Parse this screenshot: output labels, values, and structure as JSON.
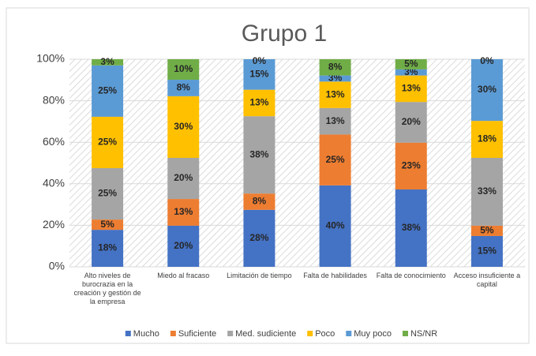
{
  "chart_data": {
    "type": "stacked_bar",
    "title": "Grupo 1",
    "categories": [
      "Alto niveles de burocrazia en la creación y gestión de la empresa",
      "Miedo al fracaso",
      "Limitación de tiempo",
      "Falta de habilidades",
      "Falta de conocimiento",
      "Acceso insuficiente a capital"
    ],
    "series": [
      {
        "name": "Mucho",
        "color": "#4472c4",
        "values": [
          18,
          20,
          28,
          40,
          38,
          15
        ],
        "value_labels": [
          "18%",
          "20%",
          "28%",
          "40%",
          "38%",
          "15%"
        ]
      },
      {
        "name": "Suficiente",
        "color": "#ed7d31",
        "values": [
          5,
          13,
          8,
          25,
          23,
          5
        ],
        "value_labels": [
          "5%",
          "13%",
          "8%",
          "25%",
          "23%",
          "5%"
        ]
      },
      {
        "name": "Med. sudiciente",
        "color": "#a5a5a5",
        "values": [
          25,
          20,
          38,
          13,
          20,
          33
        ],
        "value_labels": [
          "25%",
          "20%",
          "38%",
          "13%",
          "20%",
          "33%"
        ]
      },
      {
        "name": "Poco",
        "color": "#ffc000",
        "values": [
          25,
          30,
          13,
          13,
          13,
          18
        ],
        "value_labels": [
          "25%",
          "30%",
          "13%",
          "13%",
          "13%",
          "18%"
        ]
      },
      {
        "name": "Muy poco",
        "color": "#5b9bd5",
        "values": [
          25,
          8,
          15,
          3,
          3,
          30
        ],
        "value_labels": [
          "25%",
          "8%",
          "15%",
          "3%",
          "3%",
          "30%"
        ]
      },
      {
        "name": "NS/NR",
        "color": "#70ad47",
        "values": [
          3,
          10,
          0,
          8,
          5,
          0
        ],
        "value_labels": [
          "3%",
          "10%",
          "0%",
          "8%",
          "5%",
          "0%"
        ]
      }
    ],
    "ylim": [
      0,
      100
    ],
    "yticks": [
      {
        "value": 0,
        "label": "0%"
      },
      {
        "value": 20,
        "label": "20%"
      },
      {
        "value": 40,
        "label": "40%"
      },
      {
        "value": 60,
        "label": "60%"
      },
      {
        "value": 80,
        "label": "80%"
      },
      {
        "value": 100,
        "label": "100%"
      }
    ],
    "legend": "bottom"
  }
}
